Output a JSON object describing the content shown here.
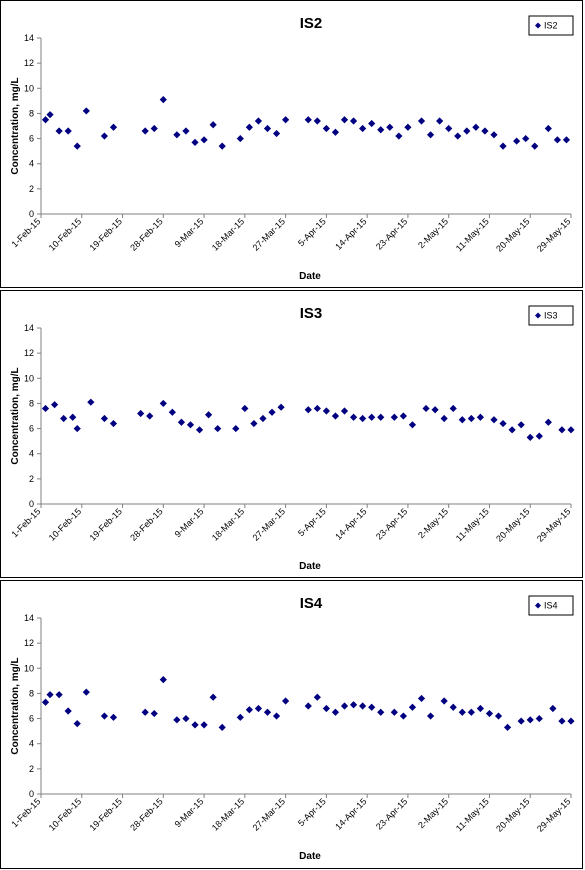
{
  "colors": {
    "marker": "#000080",
    "axis": "#808080",
    "frame": "#000000",
    "background": "#ffffff"
  },
  "chart_data": [
    {
      "type": "scatter",
      "title": "IS2",
      "xlabel": "Date",
      "ylabel": "Concentration, mg/L",
      "ylim": [
        0,
        14
      ],
      "yticks": [
        0,
        2,
        4,
        6,
        8,
        10,
        12,
        14
      ],
      "xticks": [
        "1-Feb-15",
        "10-Feb-15",
        "19-Feb-15",
        "28-Feb-15",
        "9-Mar-15",
        "18-Mar-15",
        "27-Mar-15",
        "5-Apr-15",
        "14-Apr-15",
        "23-Apr-15",
        "2-May-15",
        "11-May-15",
        "20-May-15",
        "29-May-15"
      ],
      "grid": false,
      "legend_position": "top-right",
      "series": [
        {
          "name": "IS2",
          "marker": "diamond",
          "x": [
            "2-Feb-15",
            "3-Feb-15",
            "5-Feb-15",
            "7-Feb-15",
            "9-Feb-15",
            "11-Feb-15",
            "15-Feb-15",
            "17-Feb-15",
            "24-Feb-15",
            "26-Feb-15",
            "28-Feb-15",
            "3-Mar-15",
            "5-Mar-15",
            "7-Mar-15",
            "9-Mar-15",
            "11-Mar-15",
            "13-Mar-15",
            "17-Mar-15",
            "19-Mar-15",
            "21-Mar-15",
            "23-Mar-15",
            "25-Mar-15",
            "27-Mar-15",
            "1-Apr-15",
            "3-Apr-15",
            "5-Apr-15",
            "7-Apr-15",
            "9-Apr-15",
            "11-Apr-15",
            "13-Apr-15",
            "15-Apr-15",
            "17-Apr-15",
            "19-Apr-15",
            "21-Apr-15",
            "23-Apr-15",
            "26-Apr-15",
            "28-Apr-15",
            "30-Apr-15",
            "2-May-15",
            "4-May-15",
            "6-May-15",
            "8-May-15",
            "10-May-15",
            "12-May-15",
            "14-May-15",
            "17-May-15",
            "19-May-15",
            "21-May-15",
            "24-May-15",
            "26-May-15",
            "28-May-15"
          ],
          "y": [
            7.5,
            7.9,
            6.6,
            6.6,
            5.4,
            8.2,
            6.2,
            6.9,
            6.6,
            6.8,
            9.1,
            6.3,
            6.6,
            5.7,
            5.9,
            7.1,
            5.4,
            6.0,
            6.9,
            7.4,
            6.8,
            6.4,
            7.5,
            7.5,
            7.4,
            6.8,
            6.5,
            7.5,
            7.4,
            6.8,
            7.2,
            6.7,
            6.9,
            6.2,
            6.9,
            7.4,
            6.3,
            7.4,
            6.8,
            6.2,
            6.6,
            6.9,
            6.6,
            6.3,
            5.4,
            5.8,
            6.0,
            5.4,
            6.8,
            5.9,
            5.9
          ]
        }
      ]
    },
    {
      "type": "scatter",
      "title": "IS3",
      "xlabel": "Date",
      "ylabel": "Concentration, mg/L",
      "ylim": [
        0,
        14
      ],
      "yticks": [
        0,
        2,
        4,
        6,
        8,
        10,
        12,
        14
      ],
      "xticks": [
        "1-Feb-15",
        "10-Feb-15",
        "19-Feb-15",
        "28-Feb-15",
        "9-Mar-15",
        "18-Mar-15",
        "27-Mar-15",
        "5-Apr-15",
        "14-Apr-15",
        "23-Apr-15",
        "2-May-15",
        "11-May-15",
        "20-May-15",
        "29-May-15"
      ],
      "grid": false,
      "legend_position": "top-right",
      "series": [
        {
          "name": "IS3",
          "marker": "diamond",
          "x": [
            "2-Feb-15",
            "4-Feb-15",
            "6-Feb-15",
            "8-Feb-15",
            "9-Feb-15",
            "12-Feb-15",
            "15-Feb-15",
            "17-Feb-15",
            "23-Feb-15",
            "25-Feb-15",
            "28-Feb-15",
            "2-Mar-15",
            "4-Mar-15",
            "6-Mar-15",
            "8-Mar-15",
            "10-Mar-15",
            "12-Mar-15",
            "16-Mar-15",
            "18-Mar-15",
            "20-Mar-15",
            "22-Mar-15",
            "24-Mar-15",
            "26-Mar-15",
            "1-Apr-15",
            "3-Apr-15",
            "5-Apr-15",
            "7-Apr-15",
            "9-Apr-15",
            "11-Apr-15",
            "13-Apr-15",
            "15-Apr-15",
            "17-Apr-15",
            "20-Apr-15",
            "22-Apr-15",
            "24-Apr-15",
            "27-Apr-15",
            "29-Apr-15",
            "1-May-15",
            "3-May-15",
            "5-May-15",
            "7-May-15",
            "9-May-15",
            "12-May-15",
            "14-May-15",
            "16-May-15",
            "18-May-15",
            "20-May-15",
            "22-May-15",
            "24-May-15",
            "27-May-15",
            "29-May-15"
          ],
          "y": [
            7.6,
            7.9,
            6.8,
            6.9,
            6.0,
            8.1,
            6.8,
            6.4,
            7.2,
            7.0,
            8.0,
            7.3,
            6.5,
            6.3,
            5.9,
            7.1,
            6.0,
            6.0,
            7.6,
            6.4,
            6.8,
            7.3,
            7.7,
            7.5,
            7.6,
            7.4,
            7.0,
            7.4,
            6.9,
            6.8,
            6.9,
            6.9,
            6.9,
            7.0,
            6.3,
            7.6,
            7.5,
            6.8,
            7.6,
            6.7,
            6.8,
            6.9,
            6.7,
            6.4,
            5.9,
            6.3,
            5.3,
            5.4,
            6.5,
            5.9,
            5.9
          ]
        }
      ]
    },
    {
      "type": "scatter",
      "title": "IS4",
      "xlabel": "Date",
      "ylabel": "Concentration, mg/L",
      "ylim": [
        0,
        14
      ],
      "yticks": [
        0,
        2,
        4,
        6,
        8,
        10,
        12,
        14
      ],
      "xticks": [
        "1-Feb-15",
        "10-Feb-15",
        "19-Feb-15",
        "28-Feb-15",
        "9-Mar-15",
        "18-Mar-15",
        "27-Mar-15",
        "5-Apr-15",
        "14-Apr-15",
        "23-Apr-15",
        "2-May-15",
        "11-May-15",
        "20-May-15",
        "29-May-15"
      ],
      "grid": false,
      "legend_position": "top-right",
      "series": [
        {
          "name": "IS4",
          "marker": "diamond",
          "x": [
            "2-Feb-15",
            "3-Feb-15",
            "5-Feb-15",
            "7-Feb-15",
            "9-Feb-15",
            "11-Feb-15",
            "15-Feb-15",
            "17-Feb-15",
            "24-Feb-15",
            "26-Feb-15",
            "28-Feb-15",
            "3-Mar-15",
            "5-Mar-15",
            "7-Mar-15",
            "9-Mar-15",
            "11-Mar-15",
            "13-Mar-15",
            "17-Mar-15",
            "19-Mar-15",
            "21-Mar-15",
            "23-Mar-15",
            "25-Mar-15",
            "27-Mar-15",
            "1-Apr-15",
            "3-Apr-15",
            "5-Apr-15",
            "7-Apr-15",
            "9-Apr-15",
            "11-Apr-15",
            "13-Apr-15",
            "15-Apr-15",
            "17-Apr-15",
            "20-Apr-15",
            "22-Apr-15",
            "24-Apr-15",
            "26-Apr-15",
            "28-Apr-15",
            "1-May-15",
            "3-May-15",
            "5-May-15",
            "7-May-15",
            "9-May-15",
            "11-May-15",
            "13-May-15",
            "15-May-15",
            "18-May-15",
            "20-May-15",
            "22-May-15",
            "25-May-15",
            "27-May-15",
            "29-May-15"
          ],
          "y": [
            7.3,
            7.9,
            7.9,
            6.6,
            5.6,
            8.1,
            6.2,
            6.1,
            6.5,
            6.4,
            9.1,
            5.9,
            6.0,
            5.5,
            5.5,
            7.7,
            5.3,
            6.1,
            6.7,
            6.8,
            6.5,
            6.2,
            7.4,
            7.0,
            7.7,
            6.8,
            6.5,
            7.0,
            7.1,
            7.0,
            6.9,
            6.5,
            6.5,
            6.2,
            6.9,
            7.6,
            6.2,
            7.4,
            6.9,
            6.5,
            6.5,
            6.8,
            6.4,
            6.2,
            5.3,
            5.8,
            5.9,
            6.0,
            6.8,
            5.8,
            5.8
          ]
        }
      ]
    }
  ]
}
